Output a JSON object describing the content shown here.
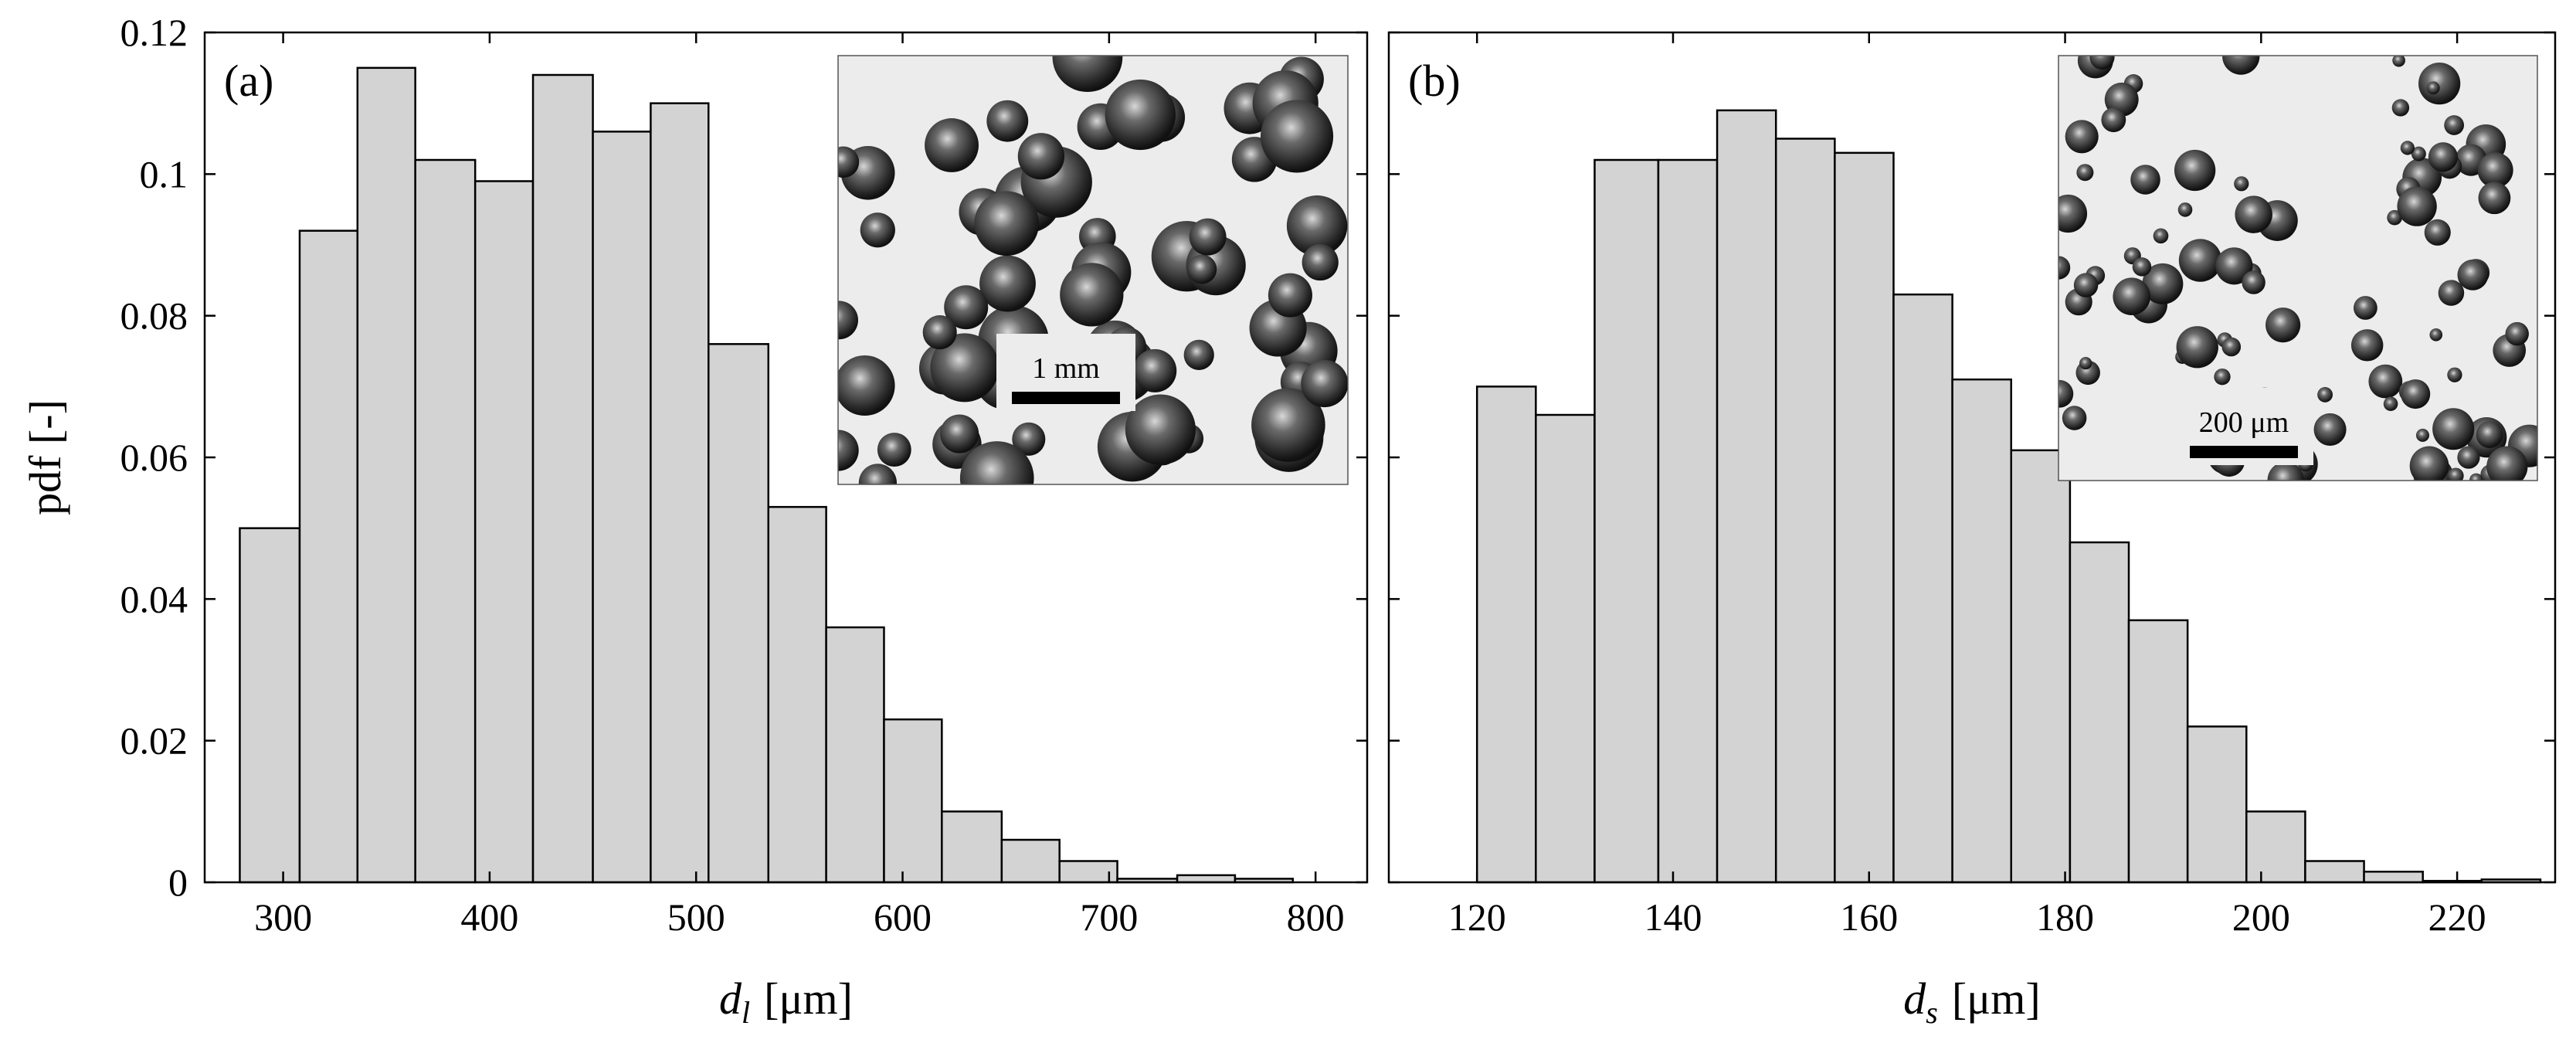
{
  "chart_data": [
    {
      "type": "bar",
      "panel_label": "(a)",
      "xlabel_symbol": "d",
      "xlabel_subscript": "l",
      "xlabel_unit": "[μm]",
      "ylabel": "pdf [-]",
      "xlim": [
        262,
        825
      ],
      "ylim": [
        0,
        0.12
      ],
      "xticks": [
        300,
        400,
        500,
        600,
        700,
        800
      ],
      "yticks": [
        0,
        0.02,
        0.04,
        0.06,
        0.08,
        0.1,
        0.12
      ],
      "ytick_labels": [
        "0",
        "0.02",
        "0.04",
        "0.06",
        "0.08",
        "0.1",
        "0.12"
      ],
      "bin_edges": [
        279,
        308,
        336,
        364,
        393,
        421,
        450,
        478,
        506,
        535,
        563,
        591,
        619,
        648,
        676,
        704,
        733,
        761,
        789
      ],
      "values": [
        0.05,
        0.092,
        0.115,
        0.102,
        0.099,
        0.114,
        0.106,
        0.11,
        0.076,
        0.053,
        0.036,
        0.023,
        0.01,
        0.006,
        0.003,
        0.0005,
        0.001,
        0.0005
      ],
      "inset": {
        "scale_bar_label": "1 mm"
      }
    },
    {
      "type": "bar",
      "panel_label": "(b)",
      "xlabel_symbol": "d",
      "xlabel_subscript": "s",
      "xlabel_unit": "[μm]",
      "ylabel": "",
      "xlim": [
        111,
        230
      ],
      "ylim": [
        0,
        0.12
      ],
      "xticks": [
        120,
        140,
        160,
        180,
        200,
        220
      ],
      "bin_edges": [
        120,
        126,
        132,
        138.5,
        144.5,
        150.5,
        156.5,
        162.5,
        168.5,
        174.5,
        180.5,
        186.5,
        192.5,
        198.5,
        204.5,
        210.5,
        216.5,
        222.5,
        228.5
      ],
      "values": [
        0.07,
        0.066,
        0.102,
        0.102,
        0.109,
        0.105,
        0.103,
        0.083,
        0.071,
        0.061,
        0.048,
        0.037,
        0.022,
        0.01,
        0.003,
        0.0015,
        0.0002,
        0.0004
      ],
      "inset": {
        "scale_bar_label": "200 μm"
      }
    }
  ]
}
